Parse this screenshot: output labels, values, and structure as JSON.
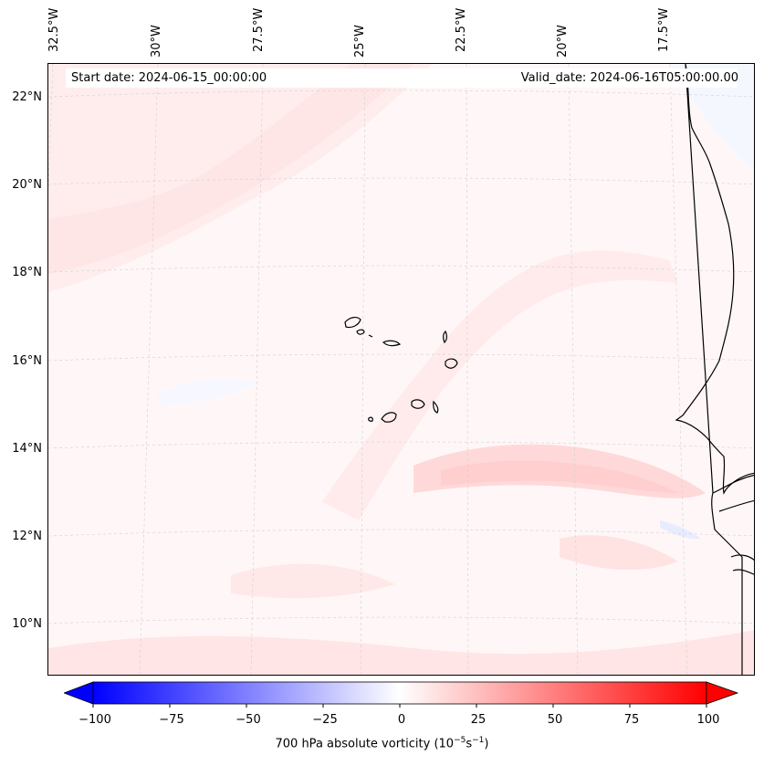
{
  "map": {
    "lon_labels": [
      "32.5°W",
      "30°W",
      "27.5°W",
      "25°W",
      "22.5°W",
      "20°W",
      "17.5°W"
    ],
    "lat_labels": [
      "22°N",
      "20°N",
      "18°N",
      "16°N",
      "14°N",
      "12°N",
      "10°N"
    ],
    "start_date": "Start date: 2024-06-15_00:00:00",
    "valid_date": "Valid_date: 2024-06-16T05:00:00.00",
    "extent": {
      "lon_min": -33.0,
      "lon_max": -15.5,
      "lat_min": 9.0,
      "lat_max": 22.8
    },
    "field": "700 hPa absolute vorticity"
  },
  "colorbar": {
    "title_prefix": "700 hPa absolute vorticity (10",
    "title_exp1": "−5",
    "title_mid": "s",
    "title_exp2": "−1",
    "title_suffix": ")",
    "ticks": [
      "−100",
      "−75",
      "−50",
      "−25",
      "0",
      "25",
      "50",
      "75",
      "100"
    ],
    "range": [
      -100,
      100
    ],
    "extend": "both",
    "negative_color": "#0000ff",
    "zero_color": "#ffffff",
    "positive_color": "#ff0000"
  },
  "colors": {
    "land_outline": "#000000",
    "gridline": "#c8c8c8",
    "weak_positive": "#fff5f5",
    "moderate_positive": "#ffdede",
    "weak_negative": "#f3f5ff"
  }
}
